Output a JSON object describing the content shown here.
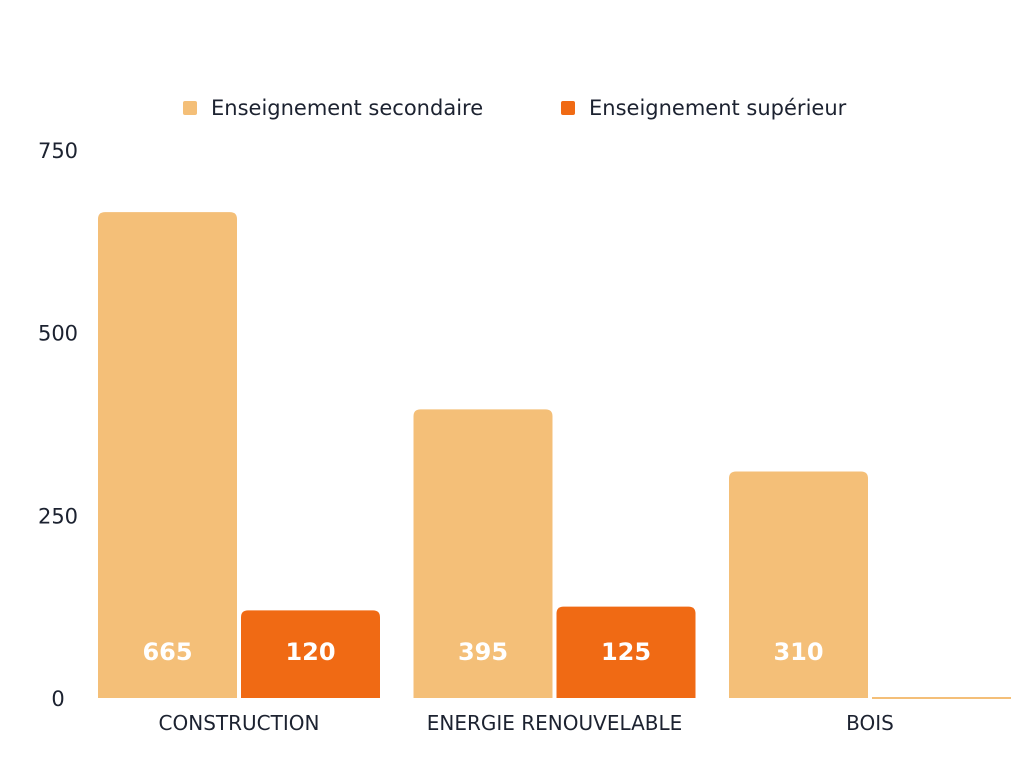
{
  "chart_data": {
    "type": "bar",
    "categories": [
      "CONSTRUCTION",
      "ENERGIE RENOUVELABLE",
      "BOIS"
    ],
    "series": [
      {
        "name": "Enseignement secondaire",
        "color": "#f4bf78",
        "values": [
          665,
          395,
          310
        ],
        "labels": [
          "665",
          "395",
          "310"
        ]
      },
      {
        "name": "Enseignement supérieur",
        "color": "#f06a14",
        "values": [
          120,
          125,
          0
        ],
        "labels": [
          "120",
          "125",
          ""
        ]
      }
    ],
    "y_ticks": [
      "0",
      "250",
      "500",
      "750"
    ],
    "ylim": [
      0,
      750
    ],
    "grid": false,
    "legend_position": "top-center",
    "title": "",
    "xlabel": "",
    "ylabel": ""
  }
}
